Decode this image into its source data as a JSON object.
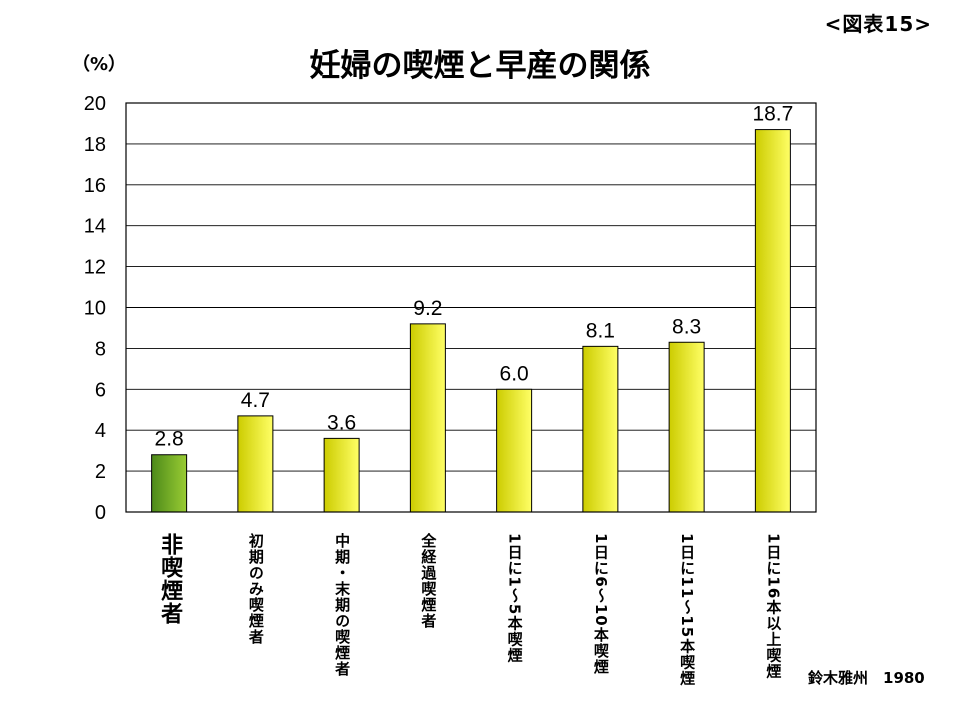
{
  "figure_number": "<図表15>",
  "source": "鈴木雅州　1980",
  "colors": {
    "bar_yellow_light": "#ffff66",
    "bar_yellow_dark": "#cccc00",
    "bar_green_light": "#99cc33",
    "bar_green_dark": "#4d8a1a",
    "gridline": "#000000"
  },
  "chart_data": {
    "type": "bar",
    "title": "妊婦の喫煙と早産の関係",
    "ylabel": "（%）",
    "xlabel": "",
    "ylim": [
      0,
      20
    ],
    "yticks": [
      0,
      2,
      4,
      6,
      8,
      10,
      12,
      14,
      16,
      18,
      20
    ],
    "grid": true,
    "categories": [
      "非喫煙者",
      "初期のみ喫煙者",
      "中期・末期の喫煙者",
      "全経過喫煙者",
      "1日に1～5本喫煙",
      "1日に6～10本喫煙",
      "1日に11～15本喫煙",
      "1日に16本以上喫煙"
    ],
    "values": [
      2.8,
      4.7,
      3.6,
      9.2,
      6.0,
      8.1,
      8.3,
      18.7
    ],
    "data_labels": [
      "2.8",
      "4.7",
      "3.6",
      "9.2",
      "6.0",
      "8.1",
      "8.3",
      "18.7"
    ]
  }
}
